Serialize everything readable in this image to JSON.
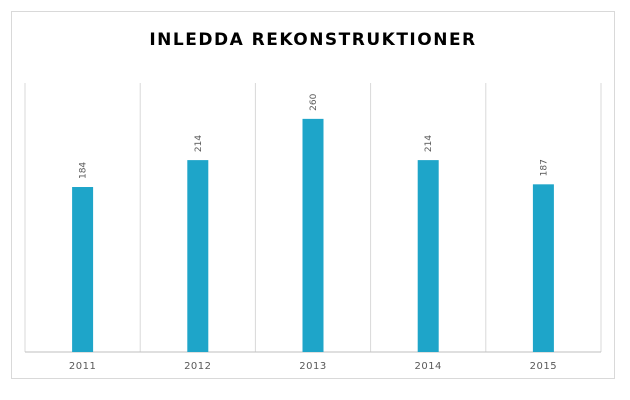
{
  "chart_data": {
    "type": "bar",
    "title": "INLEDDA REKONSTRUKTIONER",
    "categories": [
      "2011",
      "2012",
      "2013",
      "2014",
      "2015"
    ],
    "values": [
      184,
      214,
      260,
      214,
      187
    ],
    "xlabel": "",
    "ylabel": "",
    "ylim": [
      0,
      300
    ],
    "grid": "vertical category separators",
    "legend": "none",
    "bar_color": "#1ea5c9",
    "data_labels": true
  }
}
